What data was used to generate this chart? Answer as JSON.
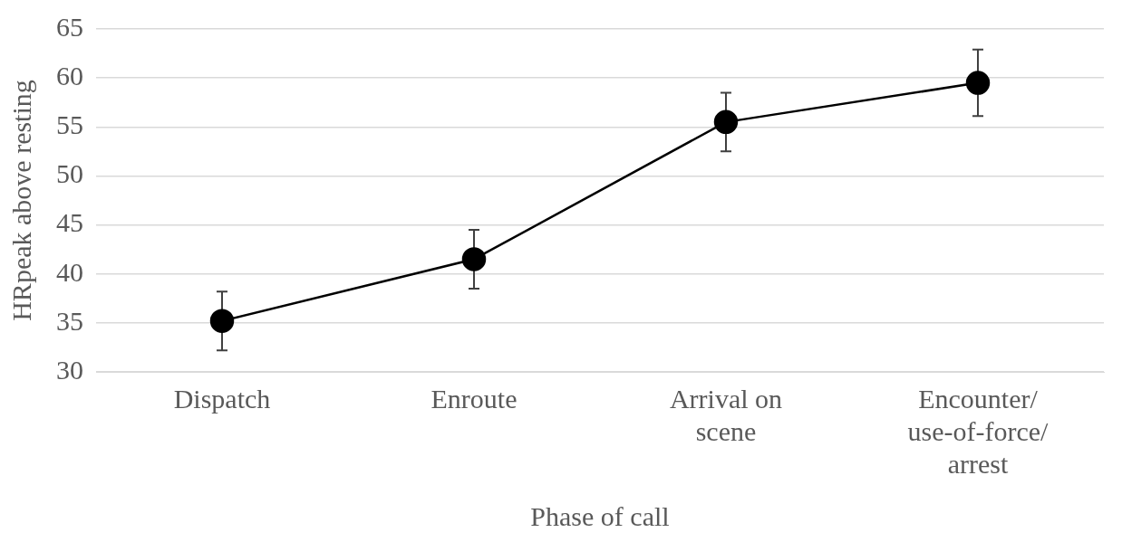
{
  "chart_data": {
    "type": "line",
    "xlabel": "Phase of call",
    "ylabel": "HRpeak above resting",
    "categories": [
      "Dispatch",
      "Enroute",
      "Arrival on scene",
      "Encounter/use-of-force/arrest"
    ],
    "series": [
      {
        "color": "#000000",
        "values": [
          35.2,
          41.5,
          55.5,
          59.5
        ],
        "errors": [
          3,
          3,
          3,
          3.4
        ]
      }
    ],
    "ylim": [
      30,
      65
    ],
    "yticks": [
      30,
      35,
      40,
      45,
      50,
      55,
      60,
      65
    ],
    "grid": "y",
    "legend": false,
    "marker": "circle",
    "line_style": "solid"
  }
}
